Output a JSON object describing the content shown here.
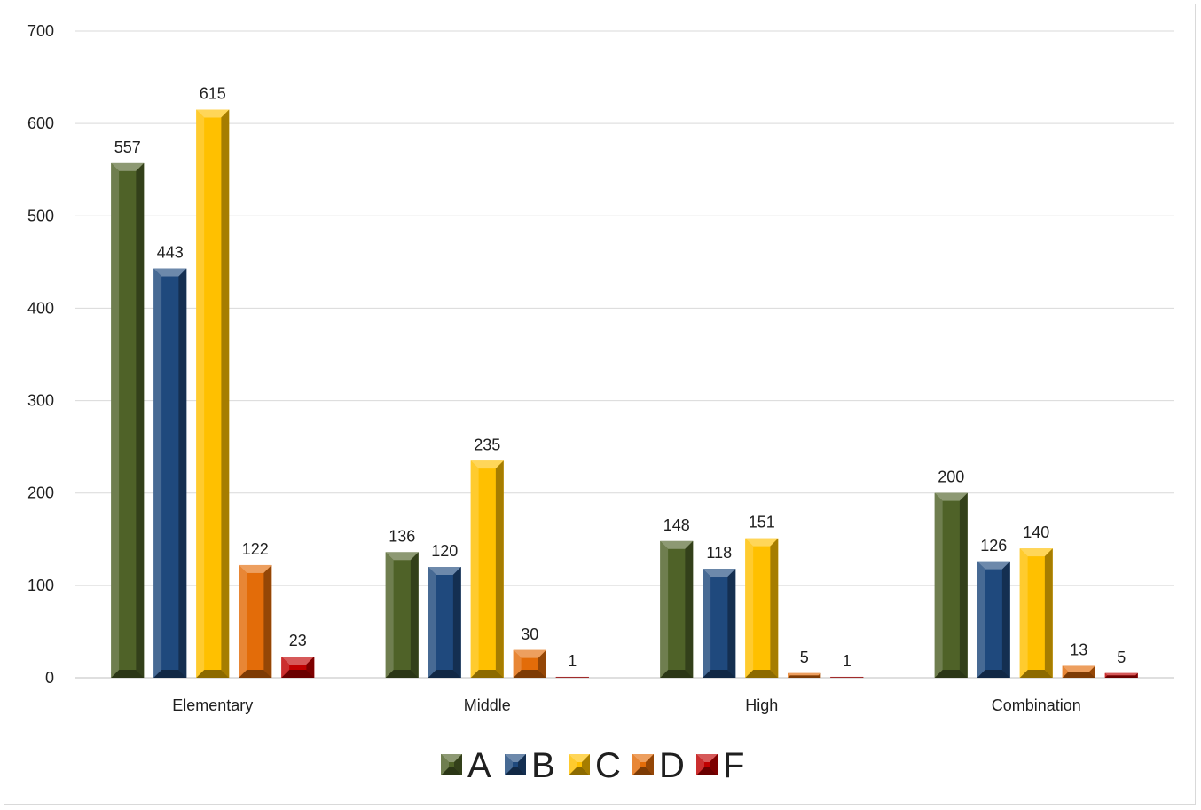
{
  "chart_data": {
    "type": "bar",
    "title": "",
    "xlabel": "",
    "ylabel": "",
    "categories": [
      "Elementary",
      "Middle",
      "High",
      "Combination"
    ],
    "series": [
      {
        "name": "A",
        "color": "#4f6228",
        "values": [
          557,
          136,
          148,
          200
        ],
        "labels": [
          "557",
          "136",
          "148",
          "200"
        ]
      },
      {
        "name": "B",
        "color": "#1f497d",
        "values": [
          443,
          120,
          118,
          126
        ],
        "labels": [
          "443",
          "120",
          "118",
          "126"
        ]
      },
      {
        "name": "C",
        "color": "#ffc000",
        "values": [
          615,
          235,
          151,
          140
        ],
        "labels": [
          "615",
          "235",
          "151",
          "140"
        ]
      },
      {
        "name": "D",
        "color": "#e36c09",
        "values": [
          122,
          30,
          5,
          13
        ],
        "labels": [
          "122",
          "30",
          "5",
          "13"
        ]
      },
      {
        "name": "F",
        "color": "#c00000",
        "values": [
          23,
          1,
          1,
          5
        ],
        "labels": [
          "23",
          "1",
          "1",
          "5"
        ]
      }
    ],
    "ylim": [
      0,
      700
    ],
    "yticks": [
      0,
      100,
      200,
      300,
      400,
      500,
      600,
      700
    ],
    "grid": true,
    "legend": "bottom"
  }
}
